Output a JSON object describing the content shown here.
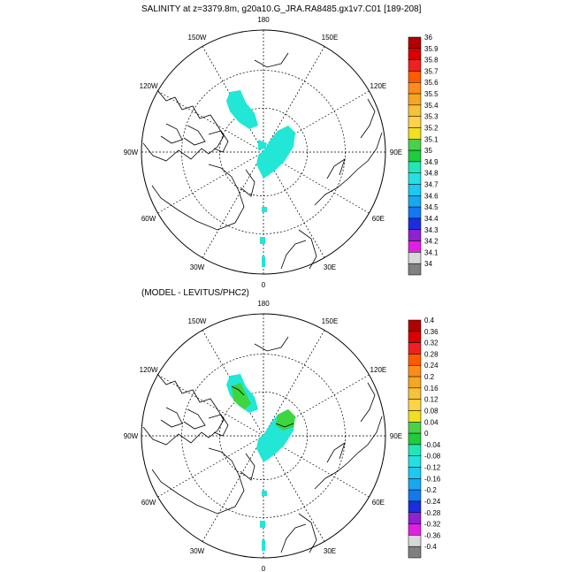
{
  "top_panel": {
    "title": "SALINITY at z=3379.8m, g20a10.G_JRA.RA8485.gx1v7.C01 [189-208]",
    "colorbar": {
      "labels": [
        "36",
        "35.9",
        "35.8",
        "35.7",
        "35.6",
        "35.5",
        "35.4",
        "35.3",
        "35.2",
        "35.1",
        "35",
        "34.9",
        "34.8",
        "34.7",
        "34.6",
        "34.5",
        "34.4",
        "34.3",
        "34.2",
        "34.1",
        "34"
      ],
      "colors": [
        "#b00000",
        "#d80000",
        "#f02020",
        "#ff5a00",
        "#ff8c1a",
        "#f5a623",
        "#f8c13a",
        "#ffd24a",
        "#f0e020",
        "#4ad14a",
        "#1ecc3c",
        "#22e6b8",
        "#24e0e6",
        "#1ec8f0",
        "#18a8f0",
        "#1478f0",
        "#1a2ee0",
        "#9020d0",
        "#e020e0",
        "#d8d8d8",
        "#808080"
      ]
    }
  },
  "bottom_panel": {
    "title": "(MODEL - LEVITUS/PHC2)",
    "colorbar": {
      "labels": [
        "0.4",
        "0.36",
        "0.32",
        "0.28",
        "0.24",
        "0.2",
        "0.16",
        "0.12",
        "0.08",
        "0.04",
        "0",
        "-0.04",
        "-0.08",
        "-0.12",
        "-0.16",
        "-0.2",
        "-0.24",
        "-0.28",
        "-0.32",
        "-0.36",
        "-0.4"
      ],
      "colors": [
        "#b00000",
        "#d80000",
        "#f02020",
        "#ff5a00",
        "#ff8c1a",
        "#f5a623",
        "#f8c13a",
        "#ffd24a",
        "#f0e020",
        "#4ad14a",
        "#1ecc3c",
        "#22e6b8",
        "#24e0e6",
        "#1ec8f0",
        "#18a8f0",
        "#1478f0",
        "#1a2ee0",
        "#9020d0",
        "#e020e0",
        "#d8d8d8",
        "#808080"
      ]
    }
  },
  "longitude_labels": [
    "180",
    "150E",
    "120E",
    "90E",
    "60E",
    "30E",
    "0",
    "30W",
    "60W",
    "90W",
    "120W",
    "150W"
  ],
  "field_colors": {
    "cyan": "#22e6d6",
    "green": "#3ed53e"
  }
}
